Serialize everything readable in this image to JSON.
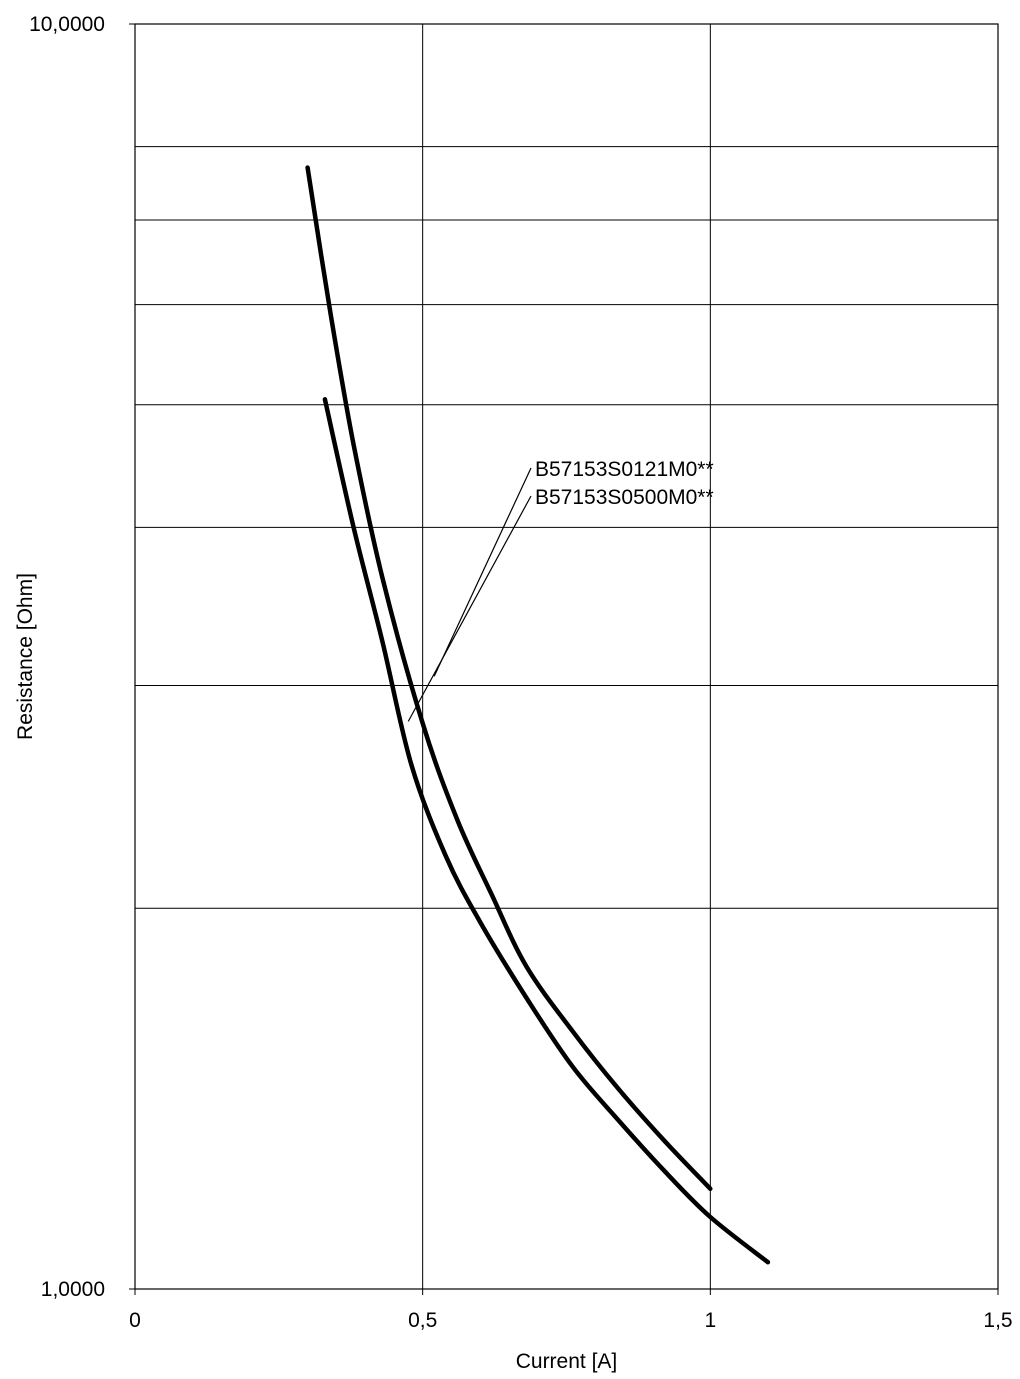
{
  "chart_data": {
    "type": "line",
    "xlabel": "Current [A]",
    "ylabel": "Resistance [Ohm]",
    "xlim": [
      0,
      1.5
    ],
    "ylim": [
      1,
      10
    ],
    "yscale": "log",
    "grid": true,
    "x_ticks": [
      {
        "value": 0,
        "label": "0"
      },
      {
        "value": 0.5,
        "label": "0,5"
      },
      {
        "value": 1,
        "label": "1"
      },
      {
        "value": 1.5,
        "label": "1,5"
      }
    ],
    "y_ticks": [
      {
        "value": 1,
        "label": "1,0000"
      },
      {
        "value": 10,
        "label": "10,0000"
      }
    ],
    "y_minor_grid": [
      2,
      3,
      4,
      5,
      6,
      7,
      8
    ],
    "series": [
      {
        "name": "B57153S0121M0**",
        "x": [
          0.3,
          0.34,
          0.38,
          0.43,
          0.5,
          0.56,
          0.62,
          0.68,
          0.76,
          0.84,
          0.92,
          1.0
        ],
        "y": [
          7.7,
          5.9,
          4.65,
          3.65,
          2.8,
          2.35,
          2.05,
          1.8,
          1.6,
          1.44,
          1.31,
          1.2
        ]
      },
      {
        "name": "B57153S0500M0**",
        "x": [
          0.33,
          0.38,
          0.43,
          0.48,
          0.54,
          0.6,
          0.68,
          0.76,
          0.84,
          0.92,
          1.0,
          1.1
        ],
        "y": [
          5.05,
          4.0,
          3.25,
          2.6,
          2.2,
          1.95,
          1.7,
          1.5,
          1.36,
          1.24,
          1.14,
          1.05
        ]
      }
    ],
    "annotations": [
      {
        "text": "B57153S0121M0**",
        "x": 0.52,
        "y": 3.05
      },
      {
        "text": "B57153S0500M0**",
        "x": 0.475,
        "y": 2.81
      }
    ]
  }
}
